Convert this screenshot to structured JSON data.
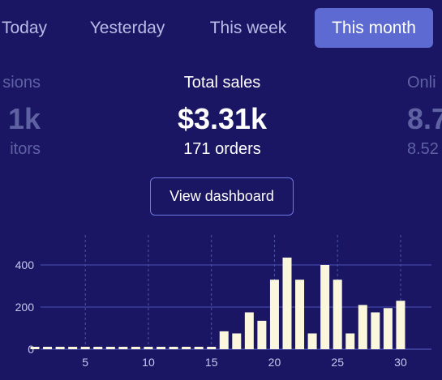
{
  "tabs": [
    {
      "label": "Today",
      "selected": false
    },
    {
      "label": "Yesterday",
      "selected": false
    },
    {
      "label": "This week",
      "selected": false
    },
    {
      "label": "This month",
      "selected": true
    }
  ],
  "stats": {
    "left": {
      "label": "sions",
      "value": "1k",
      "sub": "itors"
    },
    "center": {
      "label": "Total sales",
      "value": "$3.31k",
      "sub": "171 orders"
    },
    "right": {
      "label": "Onli",
      "value": "8.7",
      "sub": "8.52"
    }
  },
  "view_dashboard_label": "View dashboard",
  "colors": {
    "background": "#1a1664",
    "tab_selected": "#5c6ad1",
    "bar": "#fbf7dd",
    "muted_text": "#5e62a2"
  },
  "chart_data": {
    "type": "bar",
    "x": [
      1,
      2,
      3,
      4,
      5,
      6,
      7,
      8,
      9,
      10,
      11,
      12,
      13,
      14,
      15,
      16,
      17,
      18,
      19,
      20,
      21,
      22,
      23,
      24,
      25,
      26,
      27,
      28,
      29,
      30,
      31
    ],
    "values": [
      0,
      0,
      0,
      0,
      0,
      0,
      0,
      0,
      0,
      0,
      0,
      0,
      0,
      0,
      0,
      85,
      75,
      175,
      135,
      330,
      435,
      330,
      75,
      400,
      330,
      75,
      210,
      175,
      195,
      230,
      null
    ],
    "x_tick_labels": [
      "5",
      "10",
      "15",
      "20",
      "25",
      "30"
    ],
    "x_ticks": [
      5,
      10,
      15,
      20,
      25,
      30
    ],
    "y_tick_labels": [
      "0",
      "200",
      "400"
    ],
    "y_ticks": [
      0,
      200,
      400
    ],
    "ylim": [
      0,
      540
    ],
    "grid": "vertical dashed at x ticks, horizontal at y ticks"
  }
}
